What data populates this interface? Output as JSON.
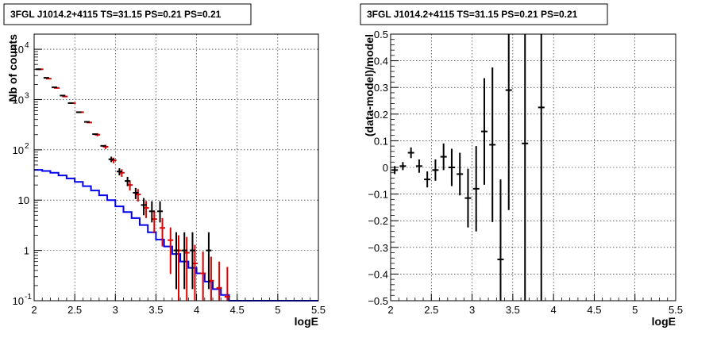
{
  "chart_data": [
    {
      "type": "line",
      "title": "3FGL J1014.2+4115 TS=31.15 PS=0.21 PS=0.21",
      "xlabel": "logE",
      "ylabel": "Nb of counts",
      "log_y": true,
      "xlim": [
        2,
        5.5
      ],
      "ylim": [
        0.1,
        20000
      ],
      "grid": true,
      "x_ticks": [
        "2",
        "2.5",
        "3",
        "3.5",
        "4",
        "4.5",
        "5",
        "5.5"
      ],
      "y_ticks": [
        "10^-1",
        "1",
        "10",
        "10^2",
        "10^3",
        "10^4"
      ],
      "colors": {
        "data": "#000000",
        "model": "#e00000",
        "background": "#0000ee"
      },
      "series": [
        {
          "role": "data",
          "points": [
            {
              "x": 2.05,
              "y": 4000,
              "elo": 0,
              "ehi": 0
            },
            {
              "x": 2.15,
              "y": 2700,
              "elo": 0,
              "ehi": 0
            },
            {
              "x": 2.25,
              "y": 1750,
              "elo": 0,
              "ehi": 0
            },
            {
              "x": 2.35,
              "y": 1200,
              "elo": 0,
              "ehi": 0
            },
            {
              "x": 2.45,
              "y": 850,
              "elo": 0,
              "ehi": 0
            },
            {
              "x": 2.55,
              "y": 560,
              "elo": 0,
              "ehi": 0
            },
            {
              "x": 2.65,
              "y": 360,
              "elo": 0,
              "ehi": 0
            },
            {
              "x": 2.75,
              "y": 205,
              "elo": 0,
              "ehi": 0
            },
            {
              "x": 2.85,
              "y": 120,
              "elo": 0,
              "ehi": 0
            },
            {
              "x": 2.95,
              "y": 65,
              "elo": 8,
              "ehi": 8
            },
            {
              "x": 3.05,
              "y": 37,
              "elo": 6,
              "ehi": 6
            },
            {
              "x": 3.15,
              "y": 24,
              "elo": 5,
              "ehi": 5
            },
            {
              "x": 3.25,
              "y": 14,
              "elo": 3.5,
              "ehi": 3.5
            },
            {
              "x": 3.35,
              "y": 8,
              "elo": 3,
              "ehi": 3
            },
            {
              "x": 3.45,
              "y": 6,
              "elo": 2.4,
              "ehi": 3.5
            },
            {
              "x": 3.55,
              "y": 6,
              "elo": 2.4,
              "ehi": 3.5
            },
            {
              "x": 3.75,
              "y": 1,
              "elo": 0.83,
              "ehi": 1.3
            },
            {
              "x": 3.85,
              "y": 1,
              "elo": 0.83,
              "ehi": 1.3
            },
            {
              "x": 3.95,
              "y": 1,
              "elo": 0.83,
              "ehi": 1.3
            },
            {
              "x": 4.15,
              "y": 1,
              "elo": 0.83,
              "ehi": 1.3
            }
          ]
        },
        {
          "role": "model",
          "points": [
            {
              "x": 2.05,
              "y": 4000,
              "elo": 0,
              "ehi": 0
            },
            {
              "x": 2.15,
              "y": 2600,
              "elo": 0,
              "ehi": 0
            },
            {
              "x": 2.25,
              "y": 1700,
              "elo": 0,
              "ehi": 0
            },
            {
              "x": 2.35,
              "y": 1150,
              "elo": 0,
              "ehi": 0
            },
            {
              "x": 2.45,
              "y": 850,
              "elo": 0,
              "ehi": 0
            },
            {
              "x": 2.55,
              "y": 560,
              "elo": 0,
              "ehi": 0
            },
            {
              "x": 2.65,
              "y": 350,
              "elo": 0,
              "ehi": 0
            },
            {
              "x": 2.75,
              "y": 200,
              "elo": 14,
              "ehi": 14
            },
            {
              "x": 2.85,
              "y": 115,
              "elo": 11,
              "ehi": 11
            },
            {
              "x": 2.95,
              "y": 62,
              "elo": 8,
              "ehi": 8
            },
            {
              "x": 3.05,
              "y": 35,
              "elo": 6,
              "ehi": 6
            },
            {
              "x": 3.15,
              "y": 20,
              "elo": 4.5,
              "ehi": 4.5
            },
            {
              "x": 3.25,
              "y": 13,
              "elo": 3.6,
              "ehi": 3.6
            },
            {
              "x": 3.35,
              "y": 7,
              "elo": 2.6,
              "ehi": 2.6
            },
            {
              "x": 3.45,
              "y": 4.2,
              "elo": 2,
              "ehi": 2
            },
            {
              "x": 3.55,
              "y": 2.8,
              "elo": 1.6,
              "ehi": 1.6
            },
            {
              "x": 3.65,
              "y": 1.6,
              "elo": 1.26,
              "ehi": 1.26
            },
            {
              "x": 3.75,
              "y": 1.0,
              "elo": 0.9,
              "ehi": 1.0
            },
            {
              "x": 3.85,
              "y": 0.9,
              "elo": 0.8,
              "ehi": 0.95
            },
            {
              "x": 3.95,
              "y": 0.55,
              "elo": 0.45,
              "ehi": 0.74
            },
            {
              "x": 4.05,
              "y": 0.35,
              "elo": 0.25,
              "ehi": 0.6
            },
            {
              "x": 4.15,
              "y": 0.25,
              "elo": 0.15,
              "ehi": 0.5
            },
            {
              "x": 4.25,
              "y": 0.18,
              "elo": 0.08,
              "ehi": 0.42
            },
            {
              "x": 4.35,
              "y": 0.12,
              "elo": 0.02,
              "ehi": 0.35
            }
          ]
        },
        {
          "role": "background",
          "steps": [
            [
              2.0,
              40
            ],
            [
              2.1,
              38
            ],
            [
              2.2,
              35
            ],
            [
              2.3,
              31
            ],
            [
              2.4,
              27
            ],
            [
              2.5,
              23
            ],
            [
              2.6,
              19
            ],
            [
              2.7,
              15.5
            ],
            [
              2.8,
              12.5
            ],
            [
              2.9,
              10
            ],
            [
              3.0,
              7.5
            ],
            [
              3.1,
              5.8
            ],
            [
              3.2,
              4.4
            ],
            [
              3.3,
              3.2
            ],
            [
              3.4,
              2.3
            ],
            [
              3.5,
              1.65
            ],
            [
              3.6,
              1.2
            ],
            [
              3.7,
              0.85
            ],
            [
              3.8,
              0.6
            ],
            [
              3.9,
              0.45
            ],
            [
              4.0,
              0.35
            ],
            [
              4.1,
              0.24
            ],
            [
              4.2,
              0.17
            ],
            [
              4.3,
              0.13
            ],
            [
              4.4,
              0.1
            ],
            [
              5.5,
              0.1
            ]
          ]
        }
      ]
    },
    {
      "type": "scatter",
      "title": "3FGL J1014.2+4115 TS=31.15 PS=0.21 PS=0.21",
      "xlabel": "logE",
      "ylabel": "(data-model)/model",
      "xlim": [
        2,
        5.5
      ],
      "ylim": [
        -0.5,
        0.5
      ],
      "grid": true,
      "x_ticks": [
        "2",
        "2.5",
        "3",
        "3.5",
        "4",
        "4.5",
        "5",
        "5.5"
      ],
      "y_ticks": [
        "-0.5",
        "-0.4",
        "-0.3",
        "-0.2",
        "-0.1",
        "0",
        "0.1",
        "0.2",
        "0.3",
        "0.4",
        "0.5"
      ],
      "colors": {
        "data": "#000000"
      },
      "series": [
        {
          "role": "residuals",
          "points": [
            {
              "x": 2.05,
              "y": -0.01,
              "err": 0.015
            },
            {
              "x": 2.15,
              "y": 0.005,
              "err": 0.015
            },
            {
              "x": 2.25,
              "y": 0.055,
              "err": 0.02
            },
            {
              "x": 2.35,
              "y": 0.005,
              "err": 0.025
            },
            {
              "x": 2.45,
              "y": -0.045,
              "err": 0.03
            },
            {
              "x": 2.55,
              "y": -0.01,
              "err": 0.04
            },
            {
              "x": 2.65,
              "y": 0.04,
              "err": 0.05
            },
            {
              "x": 2.75,
              "y": 0.0,
              "err": 0.07
            },
            {
              "x": 2.85,
              "y": -0.025,
              "err": 0.08
            },
            {
              "x": 2.95,
              "y": -0.115,
              "err": 0.11
            },
            {
              "x": 3.05,
              "y": -0.08,
              "err": 0.16
            },
            {
              "x": 3.15,
              "y": 0.135,
              "err": 0.2
            },
            {
              "x": 3.25,
              "y": 0.085,
              "err": 0.29
            },
            {
              "x": 3.35,
              "y": -0.345,
              "err": 0.3
            },
            {
              "x": 3.45,
              "y": 0.29,
              "err": 0.45
            },
            {
              "x": 3.65,
              "y": 0.09,
              "err": 0.8
            },
            {
              "x": 3.85,
              "y": 0.225,
              "err": 0.9
            }
          ]
        }
      ]
    }
  ]
}
